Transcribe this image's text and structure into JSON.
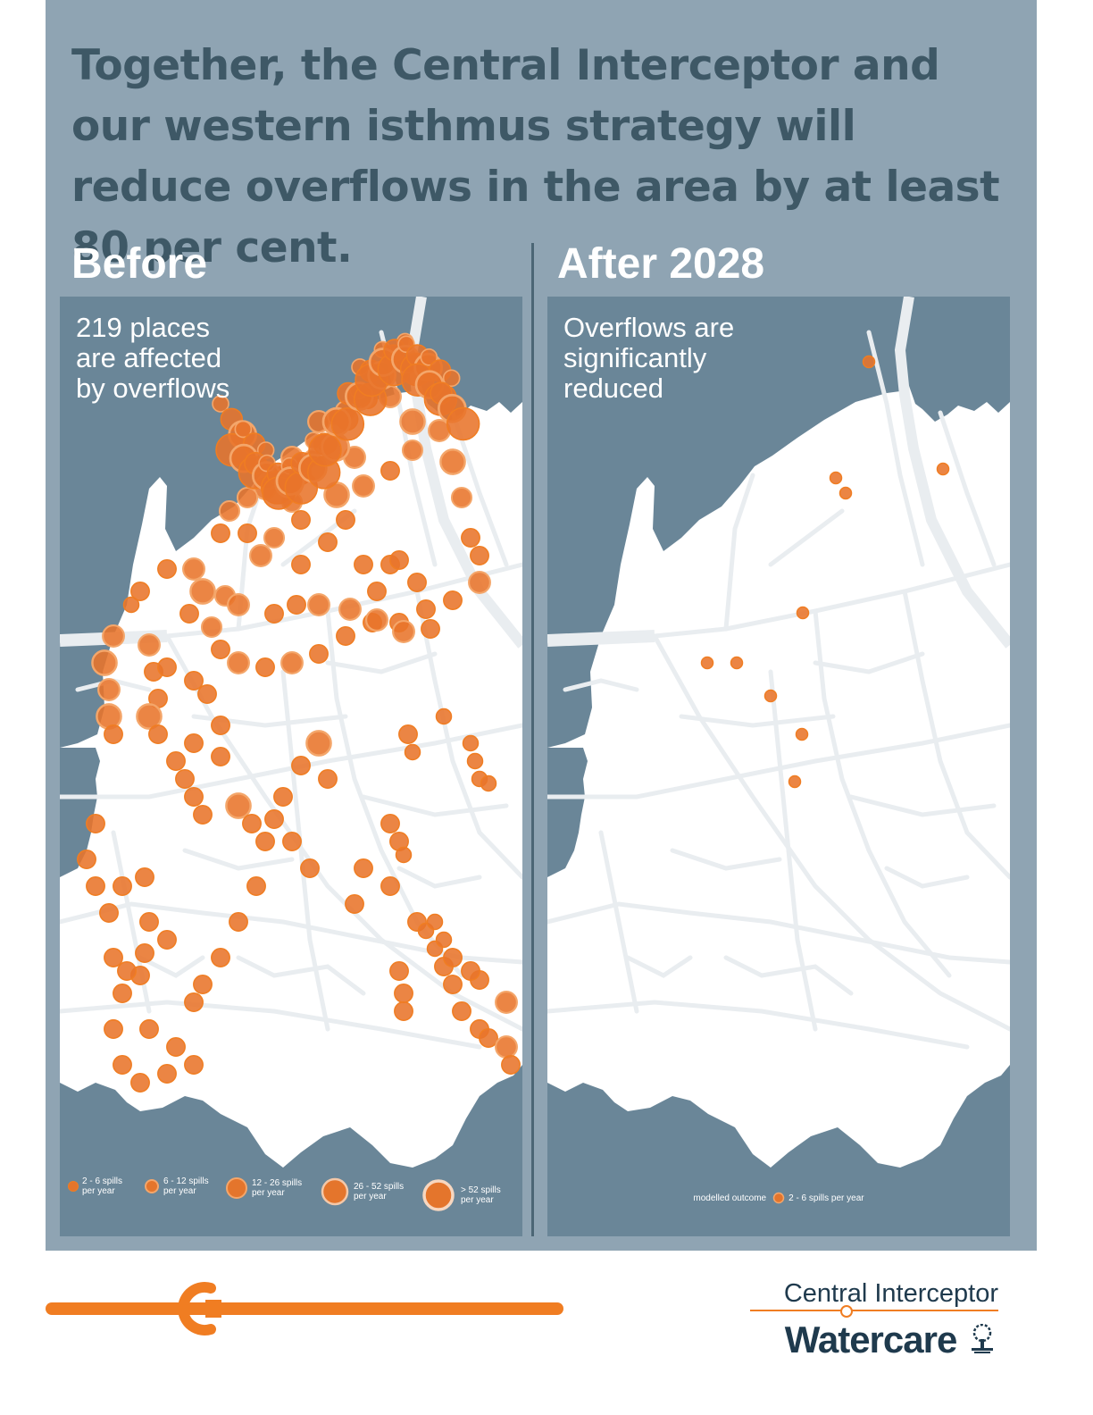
{
  "headline": "Together, the Central Interceptor and our western isthmus strategy will reduce overflows in the area by at least 80 per cent.",
  "colors": {
    "frame": "#8fa4b3",
    "water": "#6a8698",
    "land": "#ffffff",
    "road": "#e9edf0",
    "marker": "#f07d22",
    "brand_navy": "#1f3a4d"
  },
  "before": {
    "label": "Before",
    "caption": [
      "219 places",
      "are affected",
      "by overflows"
    ],
    "legend": [
      {
        "icon": "circle-size-1",
        "line1": "2 - 6 spills",
        "line2": "per year"
      },
      {
        "icon": "circle-size-2",
        "line1": "6 - 12 spills",
        "line2": "per year"
      },
      {
        "icon": "circle-size-3",
        "line1": "12 - 26 spills",
        "line2": "per year"
      },
      {
        "icon": "circle-size-4",
        "line1": "26 - 52 spills",
        "line2": "per year"
      },
      {
        "icon": "circle-size-5",
        "line1": "> 52 spills",
        "line2": "per year"
      }
    ]
  },
  "after": {
    "label": "After 2028",
    "caption": [
      "Overflows are",
      "significantly",
      "reduced"
    ],
    "legend_note": "modelled outcome",
    "legend_item": {
      "icon": "circle-size-1",
      "text": "2 - 6 spills per year"
    }
  },
  "brand": {
    "product": "Central Interceptor",
    "company": "Watercare",
    "logo_icon": "pohutukawa-tree-icon"
  }
}
